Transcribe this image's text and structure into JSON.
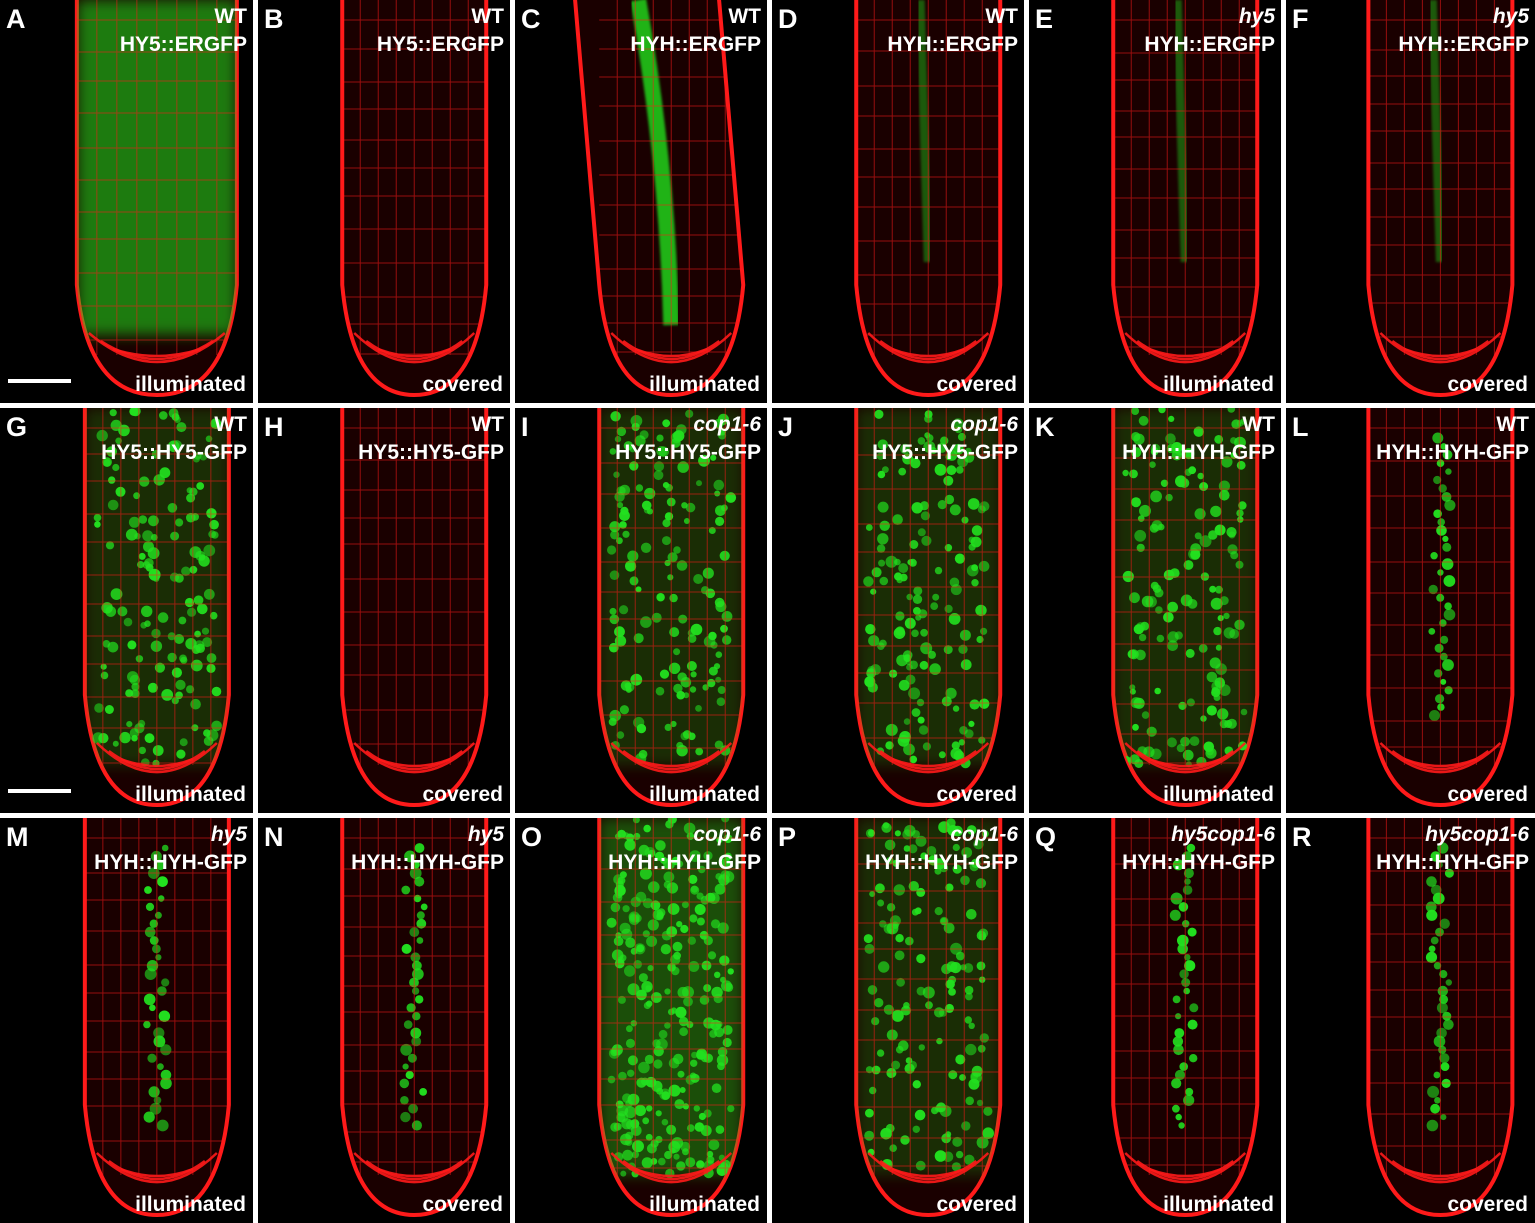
{
  "figure": {
    "colors": {
      "background": "#000000",
      "membrane_stain": "#ff1a1a",
      "gfp": "#22e01f",
      "separator": "#ffffff",
      "label_text": "#ffffff"
    },
    "panels": [
      {
        "letter": "A",
        "genotype": "WT",
        "genotype_italic": false,
        "construct": "HY5::ERGFP",
        "condition": "illuminated",
        "signal": "broad",
        "scale_bar": true
      },
      {
        "letter": "B",
        "genotype": "WT",
        "genotype_italic": false,
        "construct": "HY5::ERGFP",
        "condition": "covered",
        "signal": "none"
      },
      {
        "letter": "C",
        "genotype": "WT",
        "genotype_italic": false,
        "construct": "HYH::ERGFP",
        "condition": "illuminated",
        "signal": "stele-strong",
        "curved": true
      },
      {
        "letter": "D",
        "genotype": "WT",
        "genotype_italic": false,
        "construct": "HYH::ERGFP",
        "condition": "covered",
        "signal": "stele-faint"
      },
      {
        "letter": "E",
        "genotype": "hy5",
        "genotype_italic": true,
        "construct": "HYH::ERGFP",
        "condition": "illuminated",
        "signal": "stele-faint"
      },
      {
        "letter": "F",
        "genotype": "hy5",
        "genotype_italic": true,
        "construct": "HYH::ERGFP",
        "condition": "covered",
        "signal": "stele-faint"
      },
      {
        "letter": "G",
        "genotype": "WT",
        "genotype_italic": false,
        "construct": "HY5::HY5-GFP",
        "condition": "illuminated",
        "signal": "nuclei-broad",
        "scale_bar": true
      },
      {
        "letter": "H",
        "genotype": "WT",
        "genotype_italic": false,
        "construct": "HY5::HY5-GFP",
        "condition": "covered",
        "signal": "none"
      },
      {
        "letter": "I",
        "genotype": "cop1-6",
        "genotype_italic": true,
        "construct": "HY5::HY5-GFP",
        "condition": "illuminated",
        "signal": "nuclei-broad"
      },
      {
        "letter": "J",
        "genotype": "cop1-6",
        "genotype_italic": true,
        "construct": "HY5::HY5-GFP",
        "condition": "covered",
        "signal": "nuclei-broad"
      },
      {
        "letter": "K",
        "genotype": "WT",
        "genotype_italic": false,
        "construct": "HYH::HYH-GFP",
        "condition": "illuminated",
        "signal": "nuclei-broad"
      },
      {
        "letter": "L",
        "genotype": "WT",
        "genotype_italic": false,
        "construct": "HYH::HYH-GFP",
        "condition": "covered",
        "signal": "nuclei-stele"
      },
      {
        "letter": "M",
        "genotype": "hy5",
        "genotype_italic": true,
        "construct": "HYH::HYH-GFP",
        "condition": "illuminated",
        "signal": "nuclei-stele"
      },
      {
        "letter": "N",
        "genotype": "hy5",
        "genotype_italic": true,
        "construct": "HYH::HYH-GFP",
        "condition": "covered",
        "signal": "nuclei-stele"
      },
      {
        "letter": "O",
        "genotype": "cop1-6",
        "genotype_italic": true,
        "construct": "HYH::HYH-GFP",
        "condition": "illuminated",
        "signal": "nuclei-dense"
      },
      {
        "letter": "P",
        "genotype": "cop1-6",
        "genotype_italic": true,
        "construct": "HYH::HYH-GFP",
        "condition": "covered",
        "signal": "nuclei-broad"
      },
      {
        "letter": "Q",
        "genotype": "hy5cop1-6",
        "genotype_italic": true,
        "construct": "HYH::HYH-GFP",
        "condition": "illuminated",
        "signal": "nuclei-stele"
      },
      {
        "letter": "R",
        "genotype": "hy5cop1-6",
        "genotype_italic": true,
        "construct": "HYH::HYH-GFP",
        "condition": "covered",
        "signal": "nuclei-stele"
      }
    ]
  }
}
